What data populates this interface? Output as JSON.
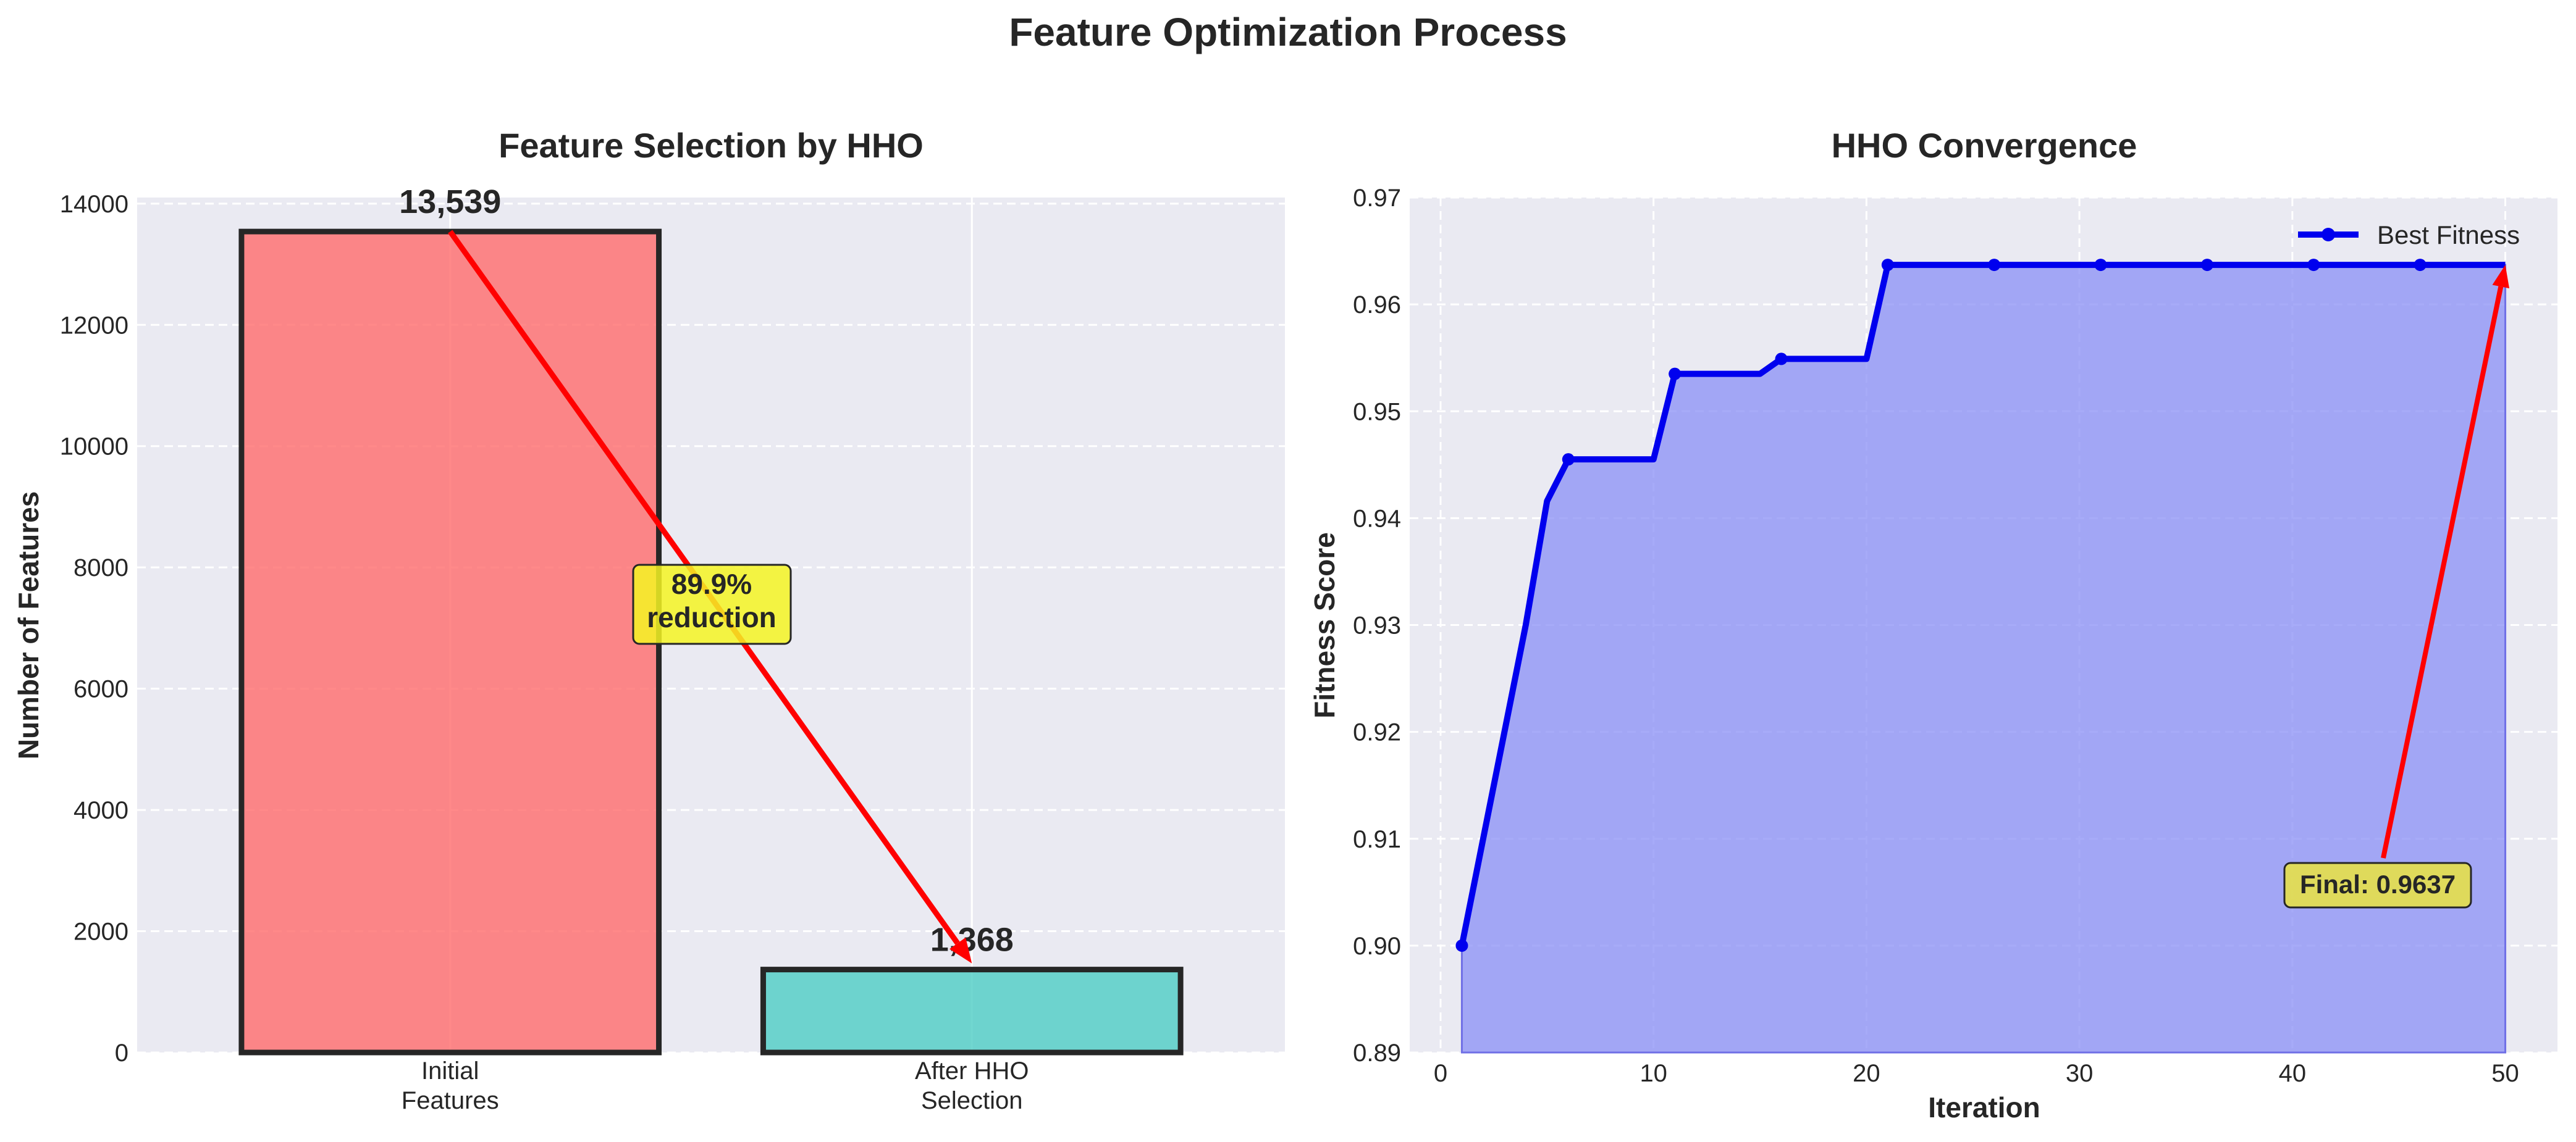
{
  "figure": {
    "title": "Feature Optimization Process"
  },
  "colors": {
    "panel_bg": "#EAEAF2",
    "bar_initial": "#FF6B6B",
    "bar_after": "#4ECDC4",
    "line": "#0000EE",
    "fill": "#8A8FF5",
    "arrow": "#FF0000",
    "annotation_bg": "#F5F523",
    "final_bg": "#E5E04A"
  },
  "chart_data": [
    {
      "type": "bar",
      "title": "Feature Selection by HHO",
      "xlabel": "",
      "ylabel": "Number of Features",
      "categories": [
        "Initial\nFeatures",
        "After HHO\nSelection"
      ],
      "values": [
        13539,
        1368
      ],
      "value_labels": [
        "13,539",
        "1,368"
      ],
      "ylim": [
        0,
        14100
      ],
      "yticks": [
        0,
        2000,
        4000,
        6000,
        8000,
        10000,
        12000,
        14000
      ],
      "grid": true,
      "annotation": {
        "text": "89.9%\nreduction"
      }
    },
    {
      "type": "line",
      "title": "HHO Convergence",
      "xlabel": "Iteration",
      "ylabel": "Fitness Score",
      "xlim": [
        -1.45,
        52.45
      ],
      "ylim": [
        0.89,
        0.97
      ],
      "xticks": [
        0,
        10,
        20,
        30,
        40,
        50
      ],
      "yticks": [
        0.89,
        0.9,
        0.91,
        0.92,
        0.93,
        0.94,
        0.95,
        0.96,
        0.97
      ],
      "grid": true,
      "legend": {
        "position": "top-right"
      },
      "series": [
        {
          "name": "Best Fitness",
          "x": [
            1,
            2,
            3,
            4,
            5,
            6,
            7,
            8,
            9,
            10,
            11,
            12,
            13,
            14,
            15,
            16,
            17,
            18,
            19,
            20,
            21,
            22,
            23,
            24,
            25,
            26,
            27,
            28,
            29,
            30,
            31,
            32,
            33,
            34,
            35,
            36,
            37,
            38,
            39,
            40,
            41,
            42,
            43,
            44,
            45,
            46,
            47,
            48,
            49,
            50
          ],
          "y": [
            0.9,
            0.91,
            0.92,
            0.93,
            0.9416,
            0.9455,
            0.9455,
            0.9455,
            0.9455,
            0.9455,
            0.9535,
            0.9535,
            0.9535,
            0.9535,
            0.9535,
            0.9549,
            0.9549,
            0.9549,
            0.9549,
            0.9549,
            0.9637,
            0.9637,
            0.9637,
            0.9637,
            0.9637,
            0.9637,
            0.9637,
            0.9637,
            0.9637,
            0.9637,
            0.9637,
            0.9637,
            0.9637,
            0.9637,
            0.9637,
            0.9637,
            0.9637,
            0.9637,
            0.9637,
            0.9637,
            0.9637,
            0.9637,
            0.9637,
            0.9637,
            0.9637,
            0.9637,
            0.9637,
            0.9637,
            0.9637,
            0.9637
          ],
          "markers_at": [
            1,
            6,
            11,
            16,
            21,
            26,
            31,
            36,
            41,
            46
          ]
        }
      ],
      "annotation": {
        "text": "Final: 0.9637",
        "target": [
          50,
          0.9637
        ]
      }
    }
  ]
}
